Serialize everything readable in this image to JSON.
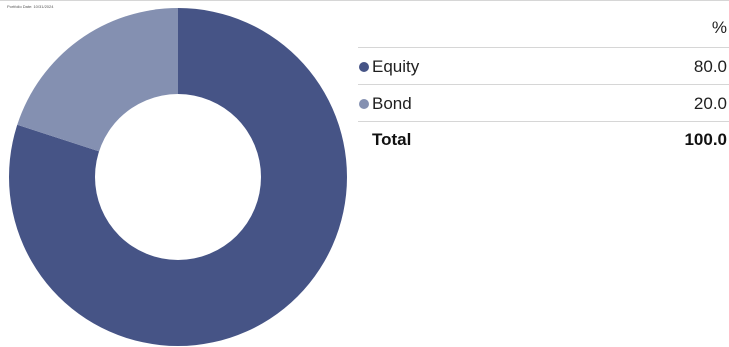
{
  "header": {
    "portfolio_date": "Portfolio Date: 10/31/2024",
    "percent_heading": "%"
  },
  "colors": {
    "equity": "#465486",
    "bond": "#8490b1",
    "hole": "#ffffff"
  },
  "chart_data": {
    "type": "pie",
    "donut": true,
    "categories": [
      "Equity",
      "Bond"
    ],
    "values": [
      80.0,
      20.0
    ],
    "colors": [
      "#465486",
      "#8490b1"
    ],
    "start_angle": "12 o'clock",
    "direction": "clockwise",
    "legend": "right"
  },
  "table": {
    "rows": [
      {
        "label": "Equity",
        "value": "80.0"
      },
      {
        "label": "Bond",
        "value": "20.0"
      }
    ],
    "total": {
      "label": "Total",
      "value": "100.0"
    }
  }
}
